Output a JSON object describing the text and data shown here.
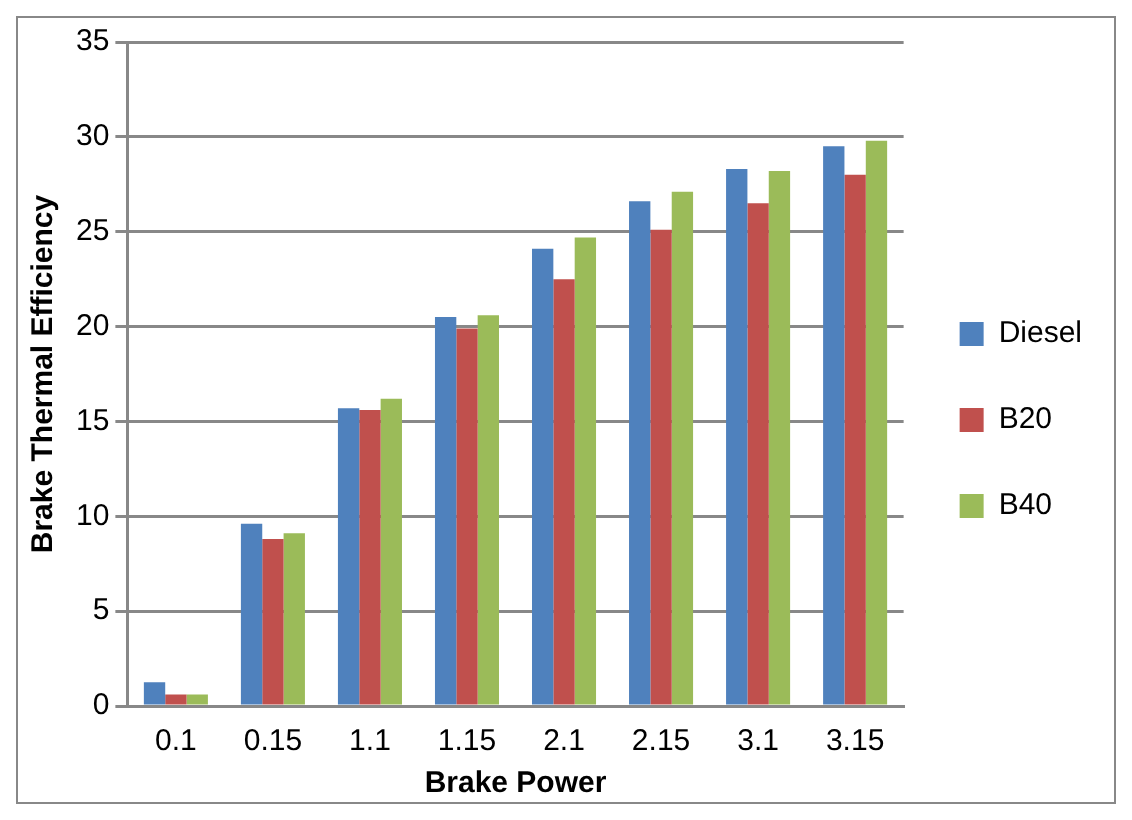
{
  "chart_data": {
    "type": "bar",
    "xlabel": "Brake Power",
    "ylabel": "Brake Thermal Efficiency",
    "categories": [
      "0.1",
      "0.15",
      "1.1",
      "1.15",
      "2.1",
      "2.15",
      "3.1",
      "3.15"
    ],
    "series": [
      {
        "name": "Diesel",
        "color": "#4f81bd",
        "values": [
          1.25,
          9.6,
          15.7,
          20.5,
          24.1,
          26.6,
          28.3,
          29.5
        ]
      },
      {
        "name": "B20",
        "color": "#c0504d",
        "values": [
          0.6,
          8.8,
          15.6,
          19.9,
          22.5,
          25.1,
          26.5,
          28.0
        ]
      },
      {
        "name": "B40",
        "color": "#9bbb59",
        "values": [
          0.6,
          9.1,
          16.2,
          20.6,
          24.7,
          27.1,
          28.2,
          29.8
        ]
      }
    ],
    "ylim": [
      0,
      35
    ],
    "yticks": [
      0,
      5,
      10,
      15,
      20,
      25,
      30,
      35
    ],
    "grid": "y",
    "legend": "right"
  }
}
